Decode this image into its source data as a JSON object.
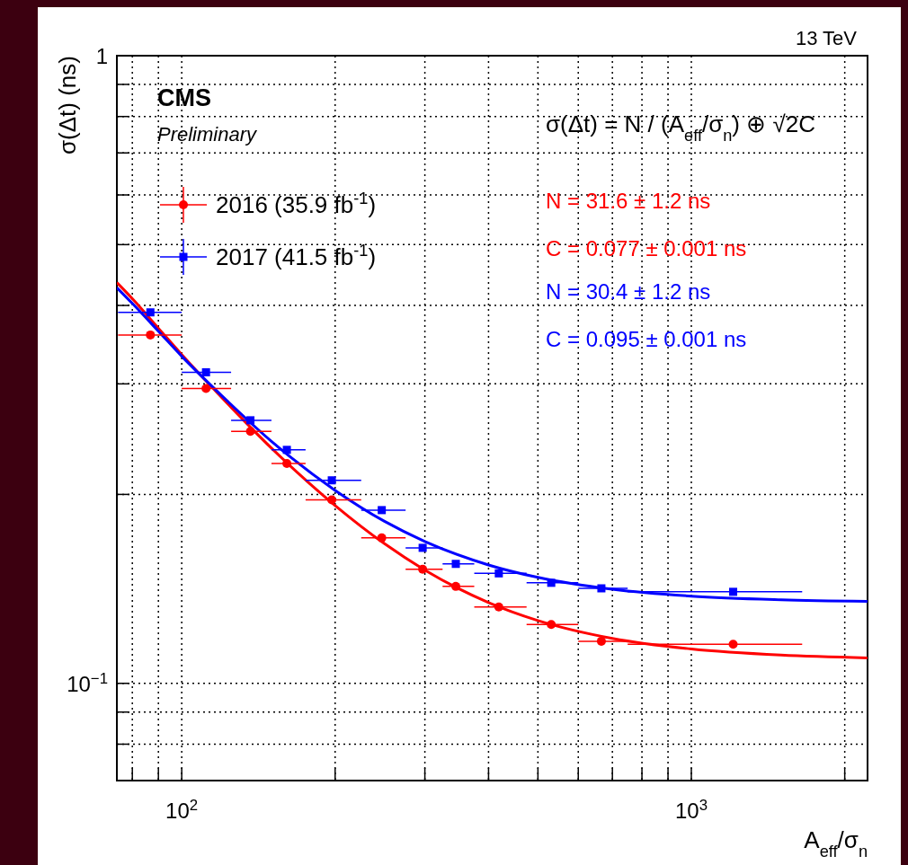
{
  "chart_data": {
    "type": "scatter",
    "xlabel": "A$_{eff}$/σ$_{n}$",
    "ylabel": "σ(Δt) (ns)",
    "log": "xy",
    "grid": true,
    "legend": "top left",
    "xlim": [
      74.6,
      2217
    ],
    "ylim": [
      0.07,
      1
    ],
    "xticks": [
      {
        "value": 80,
        "label": null
      },
      {
        "value": 90,
        "label": null
      },
      {
        "value": 100,
        "label": "10$^{2}$"
      },
      {
        "value": 200,
        "label": null
      },
      {
        "value": 300,
        "label": null
      },
      {
        "value": 400,
        "label": null
      },
      {
        "value": 500,
        "label": null
      },
      {
        "value": 600,
        "label": null
      },
      {
        "value": 700,
        "label": null
      },
      {
        "value": 800,
        "label": null
      },
      {
        "value": 900,
        "label": null
      },
      {
        "value": 1000,
        "label": "10$^{3}$"
      },
      {
        "value": 2000,
        "label": null
      }
    ],
    "yticks": [
      {
        "value": 0.08,
        "label": null
      },
      {
        "value": 0.09,
        "label": null
      },
      {
        "value": 0.1,
        "label": "10$^{−1}$"
      },
      {
        "value": 0.2,
        "label": null
      },
      {
        "value": 0.3,
        "label": null
      },
      {
        "value": 0.4,
        "label": null
      },
      {
        "value": 0.5,
        "label": null
      },
      {
        "value": 0.6,
        "label": null
      },
      {
        "value": 0.7,
        "label": null
      },
      {
        "value": 0.8,
        "label": null
      },
      {
        "value": 0.9,
        "label": null
      },
      {
        "value": 1,
        "label": "1"
      }
    ],
    "annotations": [
      "13 TeV",
      "CMS",
      "Preliminary",
      "σ(Δt) = N / (A$_{eff}$/σ$_{n}$) ⊕ √2C",
      "N = 31.6 ± 1.2 ns",
      "C = 0.077 ± 0.001 ns",
      "N = 30.4 ± 1.2 ns",
      "C = 0.095 ± 0.001 ns"
    ],
    "series": [
      {
        "type": "line",
        "color": "#ff0000",
        "marker": "none",
        "line_style": "solid",
        "x": [
          74.6,
          80,
          90,
          100,
          120,
          150,
          200,
          250,
          300,
          400,
          500,
          700,
          1000,
          1500,
          2217
        ],
        "values": [
          0.435,
          0.41,
          0.368,
          0.334,
          0.285,
          0.237,
          0.192,
          0.1669,
          0.1515,
          0.1345,
          0.1259,
          0.1179,
          0.1134,
          0.1109,
          0.1098
        ]
      },
      {
        "type": "line",
        "color": "#0000ff",
        "marker": "none",
        "line_style": "solid",
        "x": [
          74.6,
          80,
          90,
          100,
          120,
          150,
          200,
          250,
          300,
          400,
          500,
          700,
          1000,
          1500,
          2217
        ],
        "values": [
          0.427,
          0.403,
          0.364,
          0.332,
          0.287,
          0.243,
          0.203,
          0.1812,
          0.1683,
          0.1544,
          0.1475,
          0.1412,
          0.1377,
          0.1359,
          0.1351
        ]
      },
      {
        "name": "2016 (35.9 fb$^{-1}$)",
        "type": "scatter",
        "color": "#ff0000",
        "marker": "circle",
        "x": [
          86.8,
          111.6,
          136.4,
          160.8,
          197,
          246.9,
          297,
          345,
          419,
          531,
          666,
          1208
        ],
        "values": [
          0.359,
          0.295,
          0.252,
          0.224,
          0.196,
          0.1705,
          0.152,
          0.1427,
          0.1323,
          0.1241,
          0.1167,
          0.1154
        ],
        "xerrors": [
          [
            75,
            100
          ],
          [
            100,
            125
          ],
          [
            125,
            150
          ],
          [
            150,
            175
          ],
          [
            175,
            225
          ],
          [
            225,
            275
          ],
          [
            275,
            325
          ],
          [
            325,
            375
          ],
          [
            375,
            475
          ],
          [
            475,
            600
          ],
          [
            600,
            750
          ],
          [
            750,
            1650
          ]
        ]
      },
      {
        "name": "2017 (41.5 fb$^{-1}$)",
        "type": "scatter",
        "color": "#0000ff",
        "marker": "square",
        "x": [
          86.8,
          111.6,
          136.4,
          160.8,
          197,
          246.9,
          297,
          345,
          419,
          531,
          666,
          1208
        ],
        "values": [
          0.39,
          0.313,
          0.2625,
          0.2355,
          0.2106,
          0.1888,
          0.1644,
          0.155,
          0.1497,
          0.1446,
          0.1417,
          0.1399
        ],
        "xerrors": [
          [
            75,
            100
          ],
          [
            100,
            125
          ],
          [
            125,
            150
          ],
          [
            150,
            175
          ],
          [
            175,
            225
          ],
          [
            225,
            275
          ],
          [
            275,
            325
          ],
          [
            325,
            375
          ],
          [
            375,
            475
          ],
          [
            475,
            600
          ],
          [
            600,
            750
          ],
          [
            750,
            1650
          ]
        ]
      }
    ]
  }
}
